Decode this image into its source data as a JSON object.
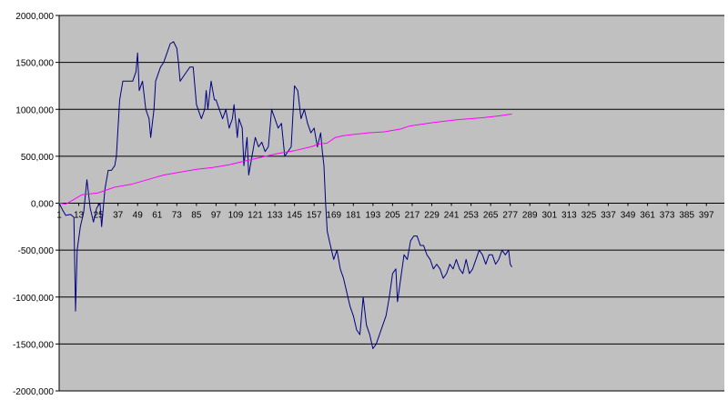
{
  "chart_data": {
    "type": "line",
    "title": "",
    "xlabel": "",
    "ylabel": "",
    "ylim": [
      -2000000,
      2000000
    ],
    "grid": true,
    "legend": "none",
    "y_ticks": [
      {
        "value": 2000000,
        "label": "2000,000"
      },
      {
        "value": 1500000,
        "label": "1500,000"
      },
      {
        "value": 1000000,
        "label": "1000,000"
      },
      {
        "value": 500000,
        "label": "500,000"
      },
      {
        "value": 0,
        "label": "0,000"
      },
      {
        "value": -500000,
        "label": "-500,000"
      },
      {
        "value": -1000000,
        "label": "-1000,000"
      },
      {
        "value": -1500000,
        "label": "-1500,000"
      },
      {
        "value": -2000000,
        "label": "-2000,000"
      }
    ],
    "x_ticks": [
      1,
      13,
      25,
      37,
      49,
      61,
      73,
      85,
      97,
      109,
      121,
      133,
      145,
      157,
      169,
      181,
      193,
      205,
      217,
      229,
      241,
      253,
      265,
      277,
      289,
      301,
      313,
      325,
      337,
      349,
      361,
      373,
      385,
      397
    ],
    "x_range": [
      1,
      408
    ],
    "colors": {
      "plot_background": "#c0c0c0",
      "gridline": "#000000",
      "series_1": "#000080",
      "series_2": "#ff00ff"
    },
    "series": [
      {
        "values": [
          [
            1,
            0
          ],
          [
            3,
            -70000
          ],
          [
            5,
            -130000
          ],
          [
            8,
            -120000
          ],
          [
            10,
            -150000
          ],
          [
            11,
            -1150000
          ],
          [
            12,
            -500000
          ],
          [
            14,
            -250000
          ],
          [
            16,
            -100000
          ],
          [
            18,
            250000
          ],
          [
            20,
            -50000
          ],
          [
            22,
            -200000
          ],
          [
            24,
            -50000
          ],
          [
            26,
            0
          ],
          [
            27,
            -250000
          ],
          [
            29,
            150000
          ],
          [
            31,
            350000
          ],
          [
            33,
            350000
          ],
          [
            35,
            400000
          ],
          [
            36,
            500000
          ],
          [
            38,
            1100000
          ],
          [
            40,
            1300000
          ],
          [
            42,
            1300000
          ],
          [
            44,
            1300000
          ],
          [
            46,
            1300000
          ],
          [
            48,
            1400000
          ],
          [
            49,
            1600000
          ],
          [
            50,
            1200000
          ],
          [
            52,
            1300000
          ],
          [
            54,
            1000000
          ],
          [
            56,
            900000
          ],
          [
            57,
            700000
          ],
          [
            59,
            1000000
          ],
          [
            60,
            1300000
          ],
          [
            62,
            1400000
          ],
          [
            63,
            1450000
          ],
          [
            65,
            1500000
          ],
          [
            67,
            1600000
          ],
          [
            69,
            1700000
          ],
          [
            71,
            1720000
          ],
          [
            73,
            1650000
          ],
          [
            74,
            1500000
          ],
          [
            75,
            1300000
          ],
          [
            77,
            1350000
          ],
          [
            79,
            1400000
          ],
          [
            81,
            1450000
          ],
          [
            83,
            1450000
          ],
          [
            85,
            1050000
          ],
          [
            86,
            1000000
          ],
          [
            88,
            900000
          ],
          [
            90,
            1000000
          ],
          [
            91,
            1200000
          ],
          [
            92,
            1000000
          ],
          [
            94,
            1300000
          ],
          [
            96,
            1100000
          ],
          [
            97,
            1100000
          ],
          [
            99,
            1000000
          ],
          [
            101,
            900000
          ],
          [
            103,
            1000000
          ],
          [
            105,
            800000
          ],
          [
            107,
            900000
          ],
          [
            108,
            1050000
          ],
          [
            110,
            700000
          ],
          [
            111,
            900000
          ],
          [
            113,
            800000
          ],
          [
            114,
            400000
          ],
          [
            116,
            700000
          ],
          [
            117,
            300000
          ],
          [
            119,
            500000
          ],
          [
            121,
            700000
          ],
          [
            123,
            600000
          ],
          [
            125,
            650000
          ],
          [
            127,
            550000
          ],
          [
            129,
            600000
          ],
          [
            131,
            1000000
          ],
          [
            133,
            900000
          ],
          [
            135,
            800000
          ],
          [
            137,
            850000
          ],
          [
            139,
            500000
          ],
          [
            141,
            550000
          ],
          [
            143,
            600000
          ],
          [
            145,
            1250000
          ],
          [
            147,
            1200000
          ],
          [
            149,
            900000
          ],
          [
            151,
            1000000
          ],
          [
            153,
            850000
          ],
          [
            155,
            750000
          ],
          [
            157,
            800000
          ],
          [
            159,
            600000
          ],
          [
            161,
            750000
          ],
          [
            162,
            550000
          ],
          [
            163,
            400000
          ],
          [
            164,
            0
          ],
          [
            165,
            -300000
          ],
          [
            167,
            -450000
          ],
          [
            169,
            -600000
          ],
          [
            171,
            -500000
          ],
          [
            173,
            -700000
          ],
          [
            175,
            -800000
          ],
          [
            177,
            -950000
          ],
          [
            179,
            -1100000
          ],
          [
            181,
            -1200000
          ],
          [
            183,
            -1350000
          ],
          [
            185,
            -1400000
          ],
          [
            186,
            -1200000
          ],
          [
            187,
            -1000000
          ],
          [
            189,
            -1300000
          ],
          [
            191,
            -1400000
          ],
          [
            193,
            -1550000
          ],
          [
            195,
            -1500000
          ],
          [
            197,
            -1400000
          ],
          [
            199,
            -1300000
          ],
          [
            201,
            -1200000
          ],
          [
            203,
            -1000000
          ],
          [
            205,
            -750000
          ],
          [
            207,
            -700000
          ],
          [
            208,
            -1050000
          ],
          [
            210,
            -800000
          ],
          [
            212,
            -550000
          ],
          [
            214,
            -600000
          ],
          [
            216,
            -400000
          ],
          [
            218,
            -350000
          ],
          [
            220,
            -350000
          ],
          [
            222,
            -450000
          ],
          [
            224,
            -450000
          ],
          [
            226,
            -550000
          ],
          [
            228,
            -600000
          ],
          [
            230,
            -700000
          ],
          [
            232,
            -650000
          ],
          [
            234,
            -700000
          ],
          [
            236,
            -800000
          ],
          [
            238,
            -750000
          ],
          [
            240,
            -650000
          ],
          [
            242,
            -700000
          ],
          [
            244,
            -600000
          ],
          [
            246,
            -700000
          ],
          [
            248,
            -750000
          ],
          [
            250,
            -600000
          ],
          [
            252,
            -750000
          ],
          [
            254,
            -700000
          ],
          [
            256,
            -600000
          ],
          [
            258,
            -500000
          ],
          [
            260,
            -550000
          ],
          [
            262,
            -650000
          ],
          [
            264,
            -550000
          ],
          [
            266,
            -550000
          ],
          [
            268,
            -650000
          ],
          [
            270,
            -600000
          ],
          [
            272,
            -500000
          ],
          [
            274,
            -550000
          ],
          [
            276,
            -500000
          ],
          [
            277,
            -650000
          ],
          [
            278,
            -680000
          ]
        ]
      },
      {
        "values": [
          [
            1,
            0
          ],
          [
            5,
            -10000
          ],
          [
            10,
            40000
          ],
          [
            12,
            60000
          ],
          [
            15,
            90000
          ],
          [
            20,
            100000
          ],
          [
            25,
            110000
          ],
          [
            30,
            140000
          ],
          [
            35,
            170000
          ],
          [
            45,
            200000
          ],
          [
            55,
            250000
          ],
          [
            65,
            300000
          ],
          [
            75,
            330000
          ],
          [
            85,
            360000
          ],
          [
            95,
            380000
          ],
          [
            105,
            410000
          ],
          [
            115,
            450000
          ],
          [
            125,
            490000
          ],
          [
            135,
            530000
          ],
          [
            145,
            560000
          ],
          [
            155,
            600000
          ],
          [
            160,
            630000
          ],
          [
            165,
            640000
          ],
          [
            170,
            700000
          ],
          [
            175,
            720000
          ],
          [
            190,
            750000
          ],
          [
            200,
            760000
          ],
          [
            210,
            790000
          ],
          [
            215,
            820000
          ],
          [
            230,
            860000
          ],
          [
            245,
            890000
          ],
          [
            260,
            910000
          ],
          [
            270,
            930000
          ],
          [
            278,
            950000
          ]
        ]
      }
    ]
  }
}
